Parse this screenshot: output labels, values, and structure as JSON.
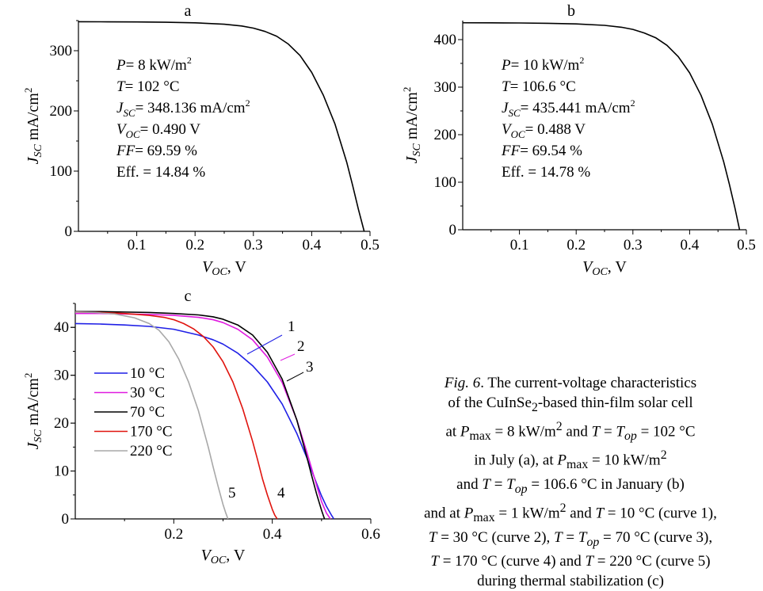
{
  "chart_data": [
    {
      "id": "a",
      "type": "line",
      "panel_label": "a",
      "xlabel_main": "V",
      "xlabel_sub": "OC",
      "xlabel_unit": ", V",
      "ylabel_main": "J",
      "ylabel_sub": "SC",
      "ylabel_unit": " mA/cm",
      "ylabel_sup": "2",
      "xlim": [
        0,
        0.5
      ],
      "ylim": [
        0,
        350
      ],
      "xticks": [
        0.1,
        0.2,
        0.3,
        0.4,
        0.5
      ],
      "xtick_labels": [
        "0.1",
        "0.2",
        "0.3",
        "0.4",
        "0.5"
      ],
      "yticks": [
        0,
        100,
        200,
        300
      ],
      "ytick_labels": [
        "0",
        "100",
        "200",
        "300"
      ],
      "grid": false,
      "annotations": [
        {
          "pre": "",
          "var": "P",
          "sub": "",
          "post": "= 8 kW/m",
          "sup": "2"
        },
        {
          "pre": "",
          "var": "T",
          "sub": "",
          "post": "= 102 °C",
          "sup": ""
        },
        {
          "pre": "",
          "var": "J",
          "sub": "SC",
          "post": "= 348.136 mA/cm",
          "sup": "2"
        },
        {
          "pre": "",
          "var": "V",
          "sub": "OC",
          "post": "= 0.490 V",
          "sup": ""
        },
        {
          "pre": "",
          "var": "FF",
          "sub": "",
          "post": "= 69.59 %",
          "sup": ""
        },
        {
          "pre": "Eff. = 14.84 %",
          "var": "",
          "sub": "",
          "post": "",
          "sup": ""
        }
      ],
      "series": [
        {
          "color": "#000000",
          "x": [
            0.0,
            0.05,
            0.1,
            0.15,
            0.2,
            0.25,
            0.28,
            0.3,
            0.32,
            0.34,
            0.36,
            0.38,
            0.4,
            0.42,
            0.44,
            0.46,
            0.47,
            0.48,
            0.49
          ],
          "y": [
            348.1,
            348.0,
            347.8,
            347.3,
            346.3,
            344.0,
            341.0,
            337.5,
            332.0,
            324.0,
            311.0,
            292.0,
            264.0,
            226.0,
            178.0,
            115.0,
            77.0,
            37.0,
            0.0
          ]
        }
      ]
    },
    {
      "id": "b",
      "type": "line",
      "panel_label": "b",
      "xlabel_main": "V",
      "xlabel_sub": "OC",
      "xlabel_unit": ", V",
      "ylabel_main": "J",
      "ylabel_sub": "SC",
      "ylabel_unit": " mA/cm",
      "ylabel_sup": "2",
      "xlim": [
        0,
        0.5
      ],
      "ylim": [
        0,
        440
      ],
      "xticks": [
        0.1,
        0.2,
        0.3,
        0.4,
        0.5
      ],
      "xtick_labels": [
        "0.1",
        "0.2",
        "0.3",
        "0.4",
        "0.5"
      ],
      "yticks": [
        0,
        100,
        200,
        300,
        400
      ],
      "ytick_labels": [
        "0",
        "100",
        "200",
        "300",
        "400"
      ],
      "grid": false,
      "annotations": [
        {
          "pre": "",
          "var": "P",
          "sub": "",
          "post": "= 10 kW/m",
          "sup": "2"
        },
        {
          "pre": "",
          "var": "T",
          "sub": "",
          "post": "= 106.6 °C",
          "sup": ""
        },
        {
          "pre": "",
          "var": "J",
          "sub": "SC",
          "post": "= 435.441 mA/cm",
          "sup": "2"
        },
        {
          "pre": "",
          "var": "V",
          "sub": "OC",
          "post": "= 0.488 V",
          "sup": ""
        },
        {
          "pre": "",
          "var": "FF",
          "sub": "",
          "post": "= 69.54 %",
          "sup": ""
        },
        {
          "pre": "Eff. = 14.78 %",
          "var": "",
          "sub": "",
          "post": "",
          "sup": ""
        }
      ],
      "series": [
        {
          "color": "#000000",
          "x": [
            0.0,
            0.05,
            0.1,
            0.15,
            0.2,
            0.25,
            0.28,
            0.3,
            0.32,
            0.34,
            0.36,
            0.38,
            0.4,
            0.42,
            0.44,
            0.46,
            0.47,
            0.48,
            0.488
          ],
          "y": [
            435.4,
            435.3,
            435.0,
            434.3,
            433.0,
            430.0,
            426.0,
            421.5,
            414.0,
            404.0,
            388.0,
            364.0,
            330.0,
            283.0,
            222.0,
            143.0,
            96.0,
            45.0,
            0.0
          ]
        }
      ]
    },
    {
      "id": "c",
      "type": "line",
      "panel_label": "c",
      "xlabel_main": "V",
      "xlabel_sub": "OC",
      "xlabel_unit": ", V",
      "ylabel_main": "J",
      "ylabel_sub": "SC",
      "ylabel_unit": " mA/cm",
      "ylabel_sup": "2",
      "xlim": [
        0,
        0.6
      ],
      "ylim": [
        0,
        45
      ],
      "xticks": [
        0.2,
        0.4,
        0.6
      ],
      "xtick_labels": [
        "0.2",
        "0.4",
        "0.6"
      ],
      "yticks": [
        0,
        10,
        20,
        30,
        40
      ],
      "ytick_labels": [
        "0",
        "10",
        "20",
        "30",
        "40"
      ],
      "grid": false,
      "legend_position": "left",
      "series": [
        {
          "name": "10 °C",
          "curve_label": "1",
          "color": "#1f1fe6",
          "x": [
            0.0,
            0.05,
            0.1,
            0.15,
            0.2,
            0.25,
            0.28,
            0.3,
            0.33,
            0.36,
            0.39,
            0.42,
            0.45,
            0.47,
            0.49,
            0.5,
            0.51,
            0.52,
            0.525
          ],
          "y": [
            40.8,
            40.7,
            40.5,
            40.2,
            39.6,
            38.4,
            37.4,
            36.5,
            34.6,
            32.0,
            28.6,
            24.0,
            17.8,
            12.8,
            7.4,
            4.8,
            2.6,
            0.8,
            0.0
          ]
        },
        {
          "name": "30 °C",
          "curve_label": "2",
          "color": "#e01be0",
          "x": [
            0.0,
            0.05,
            0.1,
            0.15,
            0.2,
            0.25,
            0.28,
            0.3,
            0.33,
            0.36,
            0.39,
            0.42,
            0.45,
            0.47,
            0.49,
            0.5,
            0.51,
            0.518
          ],
          "y": [
            42.9,
            42.9,
            42.8,
            42.7,
            42.5,
            42.1,
            41.6,
            41.0,
            39.6,
            37.4,
            33.8,
            28.5,
            20.6,
            14.0,
            7.0,
            3.6,
            1.2,
            0.0
          ]
        },
        {
          "name": "70 °C",
          "curve_label": "3",
          "color": "#000000",
          "x": [
            0.0,
            0.05,
            0.1,
            0.15,
            0.2,
            0.25,
            0.28,
            0.3,
            0.33,
            0.36,
            0.39,
            0.42,
            0.45,
            0.47,
            0.48,
            0.49,
            0.5,
            0.506
          ],
          "y": [
            43.3,
            43.3,
            43.2,
            43.1,
            42.9,
            42.6,
            42.2,
            41.7,
            40.5,
            38.4,
            34.8,
            29.2,
            20.6,
            13.0,
            9.0,
            5.2,
            1.8,
            0.0
          ]
        },
        {
          "name": "170 °C",
          "curve_label": "4",
          "color": "#e0140e",
          "x": [
            0.0,
            0.05,
            0.1,
            0.15,
            0.18,
            0.2,
            0.22,
            0.24,
            0.26,
            0.28,
            0.3,
            0.32,
            0.34,
            0.36,
            0.37,
            0.38,
            0.39,
            0.4,
            0.405,
            0.41
          ],
          "y": [
            43.2,
            43.1,
            42.9,
            42.5,
            42.1,
            41.6,
            40.8,
            39.7,
            38.1,
            35.9,
            32.8,
            28.6,
            23.0,
            16.2,
            12.4,
            8.4,
            5.0,
            2.0,
            0.8,
            0.0
          ]
        },
        {
          "name": "220 °C",
          "curve_label": "5",
          "color": "#a8a8a8",
          "x": [
            0.0,
            0.04,
            0.08,
            0.12,
            0.15,
            0.17,
            0.19,
            0.21,
            0.23,
            0.25,
            0.27,
            0.28,
            0.29,
            0.3,
            0.305,
            0.31
          ],
          "y": [
            43.2,
            43.1,
            42.8,
            42.0,
            40.8,
            39.4,
            37.0,
            33.4,
            28.6,
            22.6,
            15.0,
            10.8,
            6.8,
            3.0,
            1.4,
            0.0
          ]
        }
      ]
    }
  ],
  "caption": {
    "fig_label": "Fig. 6",
    "lines": [
      ". The current-voltage characteristics",
      "of the CuInSe",
      "2",
      "-based thin-film solar cell",
      "at ",
      "P",
      "max",
      " = 8 kW/m",
      "2",
      " and ",
      "T",
      " = ",
      "T",
      "op",
      " = 102 °C",
      "in July (a), at ",
      "P",
      "max",
      " = 10 kW/m",
      "2",
      "and ",
      "T",
      " = ",
      "T",
      "op",
      " = 106.6 °C in January (b)",
      "and at ",
      "P",
      "max",
      " = 1 kW/m",
      "2",
      " and ",
      "T",
      " = 10 °C (curve 1),",
      "T",
      " = 30 °C (curve 2), ",
      "T",
      " = ",
      "T",
      "op",
      " = 70 °C (curve 3),",
      "T",
      " = 170 °C (curve 4) and ",
      "T",
      " = 220 °C (curve 5)",
      "during thermal stabilization (c)"
    ]
  }
}
